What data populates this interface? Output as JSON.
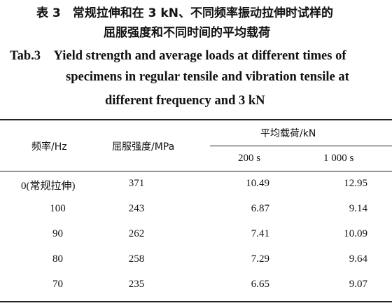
{
  "caption": {
    "cn_lines": [
      "表 3　常规拉伸和在 3 kN、不同频率振动拉伸时试样的",
      "屈服强度和不同时间的平均载荷"
    ],
    "en_lines": [
      "Tab.3　Yield strength and average loads at different times of",
      "specimens in regular tensile and vibration tensile at",
      "different frequency and 3 kN"
    ]
  },
  "table": {
    "header": {
      "frequency": "频率/Hz",
      "yield": "屈服强度/MPa",
      "load": "平均载荷/kN",
      "t1": "200 s",
      "t2": "1 000 s"
    },
    "rows": [
      [
        "0(常规拉伸)",
        371,
        10.49,
        12.95
      ],
      [
        100,
        243,
        6.87,
        9.14
      ],
      [
        90,
        262,
        7.41,
        10.09
      ],
      [
        80,
        258,
        7.29,
        9.64
      ],
      [
        70,
        235,
        6.65,
        9.07
      ]
    ]
  }
}
